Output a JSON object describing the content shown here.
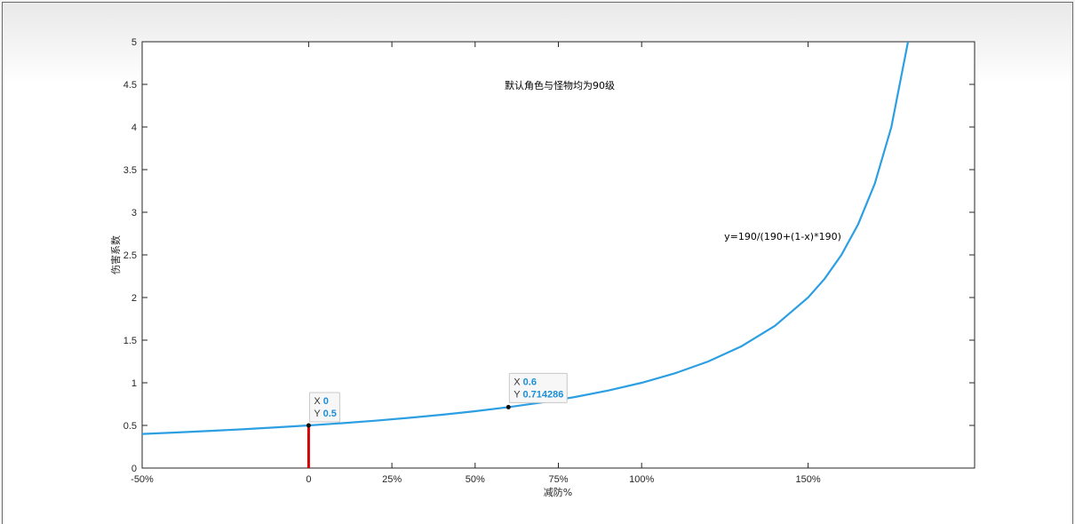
{
  "chart_data": {
    "type": "line",
    "title": "",
    "xlabel": "减防%",
    "ylabel": "伤害系数",
    "annotations": [
      "默认角色与怪物均为90级",
      "y=190/(190+(1-x)*190)"
    ],
    "xlim": [
      -0.5,
      2.0
    ],
    "ylim": [
      0,
      5
    ],
    "x_ticks": [
      {
        "value": -0.5,
        "label": "-50%"
      },
      {
        "value": 0,
        "label": "0"
      },
      {
        "value": 0.25,
        "label": "25%"
      },
      {
        "value": 0.5,
        "label": "50%"
      },
      {
        "value": 0.75,
        "label": "75%"
      },
      {
        "value": 1.0,
        "label": "100%"
      },
      {
        "value": 1.5,
        "label": "150%"
      }
    ],
    "y_ticks": [
      {
        "value": 0,
        "label": "0"
      },
      {
        "value": 0.5,
        "label": "0.5"
      },
      {
        "value": 1,
        "label": "1"
      },
      {
        "value": 1.5,
        "label": "1.5"
      },
      {
        "value": 2,
        "label": "2"
      },
      {
        "value": 2.5,
        "label": "2.5"
      },
      {
        "value": 3,
        "label": "3"
      },
      {
        "value": 3.5,
        "label": "3.5"
      },
      {
        "value": 4,
        "label": "4"
      },
      {
        "value": 4.5,
        "label": "4.5"
      },
      {
        "value": 5,
        "label": "5"
      }
    ],
    "series": [
      {
        "color": "#2c9fe3",
        "x": [
          -0.5,
          -0.4,
          -0.3,
          -0.2,
          -0.1,
          0.0,
          0.1,
          0.2,
          0.3,
          0.4,
          0.5,
          0.6,
          0.7,
          0.8,
          0.9,
          1.0,
          1.1,
          1.2,
          1.3,
          1.4,
          1.5,
          1.55,
          1.6,
          1.65,
          1.7,
          1.75,
          1.8
        ],
        "y": [
          0.4,
          0.4167,
          0.4348,
          0.4545,
          0.4762,
          0.5,
          0.5263,
          0.5556,
          0.5882,
          0.625,
          0.6667,
          0.7143,
          0.7692,
          0.8333,
          0.9091,
          1.0,
          1.1111,
          1.25,
          1.4286,
          1.6667,
          2.0,
          2.2222,
          2.5,
          2.8571,
          3.3333,
          4.0,
          5.0
        ]
      }
    ],
    "highlight_line": {
      "x": 0,
      "y_from": 0,
      "y_to": 0.5,
      "color": "#d40000"
    },
    "datatips": [
      {
        "x_key": "X",
        "x_val": "0",
        "y_key": "Y",
        "y_val": "0.5",
        "x": 0,
        "y": 0.5
      },
      {
        "x_key": "X",
        "x_val": "0.6",
        "y_key": "Y",
        "y_val": "0.714286",
        "x": 0.6,
        "y": 0.714286
      }
    ]
  }
}
